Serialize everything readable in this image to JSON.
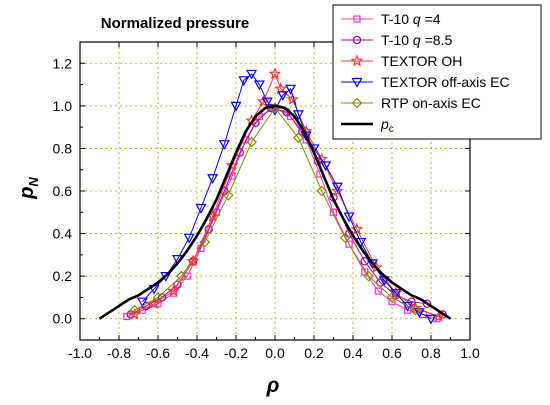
{
  "chart_data": {
    "type": "line",
    "title": "Normalized pressure",
    "xlabel": "ρ",
    "ylabel": "p",
    "ylabel_sub": "N",
    "xlim": [
      -1.0,
      1.0
    ],
    "ylim": [
      -0.1,
      1.3
    ],
    "xticks": [
      "-1.0",
      "-0.8",
      "-0.6",
      "-0.4",
      "-0.2",
      "0.0",
      "0.2",
      "0.4",
      "0.6",
      "0.8",
      "1.0"
    ],
    "yticks": [
      "0.0",
      "0.2",
      "0.4",
      "0.6",
      "0.8",
      "1.0",
      "1.2"
    ],
    "xtick_values": [
      -1.0,
      -0.8,
      -0.6,
      -0.4,
      -0.2,
      0.0,
      0.2,
      0.4,
      0.6,
      0.8,
      1.0
    ],
    "ytick_values": [
      0.0,
      0.2,
      0.4,
      0.6,
      0.8,
      1.0,
      1.2
    ],
    "grid": true,
    "legend_position": "top-right",
    "series": [
      {
        "name": "T-10 q=4",
        "legend_parts": [
          "T-10 ",
          "q",
          " =4"
        ],
        "color": "#ff33cc",
        "marker": "square",
        "x": [
          -0.76,
          -0.68,
          -0.6,
          -0.52,
          -0.45,
          -0.38,
          -0.3,
          -0.22,
          -0.15,
          -0.08,
          0.0,
          0.08,
          0.16,
          0.23,
          0.3,
          0.38,
          0.46,
          0.53,
          0.6,
          0.68,
          0.76,
          0.83
        ],
        "y": [
          0.01,
          0.04,
          0.07,
          0.12,
          0.2,
          0.33,
          0.5,
          0.67,
          0.84,
          0.95,
          0.99,
          0.95,
          0.84,
          0.68,
          0.5,
          0.35,
          0.22,
          0.13,
          0.08,
          0.04,
          0.02,
          0.0
        ]
      },
      {
        "name": "T-10 q=8.5",
        "legend_parts": [
          "T-10 ",
          "q",
          " =8.5"
        ],
        "color": "#aa00aa",
        "marker": "circle",
        "x": [
          -0.74,
          -0.66,
          -0.58,
          -0.5,
          -0.42,
          -0.34,
          -0.26,
          -0.18,
          -0.1,
          -0.02,
          0.06,
          0.14,
          0.22,
          0.3,
          0.38,
          0.46,
          0.54,
          0.62,
          0.7,
          0.78,
          0.86
        ],
        "y": [
          0.02,
          0.06,
          0.1,
          0.16,
          0.27,
          0.42,
          0.6,
          0.78,
          0.92,
          0.99,
          0.97,
          0.88,
          0.74,
          0.57,
          0.4,
          0.27,
          0.17,
          0.11,
          0.08,
          0.07,
          0.02
        ]
      },
      {
        "name": "TEXTOR OH",
        "legend_parts": [
          "TEXTOR OH"
        ],
        "color": "#ff3333",
        "marker": "star",
        "x": [
          -0.72,
          -0.62,
          -0.52,
          -0.42,
          -0.32,
          -0.22,
          -0.12,
          -0.06,
          0.0,
          0.03,
          0.09,
          0.16,
          0.24,
          0.32,
          0.42,
          0.52,
          0.62,
          0.72,
          0.84
        ],
        "y": [
          0.02,
          0.07,
          0.13,
          0.27,
          0.48,
          0.72,
          0.93,
          1.02,
          1.15,
          1.08,
          1.03,
          0.88,
          0.75,
          0.6,
          0.42,
          0.24,
          0.12,
          0.05,
          0.01
        ]
      },
      {
        "name": "TEXTOR off-axis EC",
        "legend_parts": [
          "TEXTOR off-axis EC"
        ],
        "color": "#0000ee",
        "marker": "triangle-down",
        "x": [
          -0.68,
          -0.62,
          -0.56,
          -0.5,
          -0.44,
          -0.38,
          -0.32,
          -0.26,
          -0.2,
          -0.16,
          -0.12,
          -0.08,
          -0.04,
          0.0,
          0.04,
          0.08,
          0.12,
          0.16,
          0.2,
          0.26,
          0.32,
          0.38,
          0.44,
          0.5,
          0.56,
          0.62,
          0.68,
          0.74,
          0.8
        ],
        "y": [
          0.08,
          0.14,
          0.2,
          0.28,
          0.38,
          0.52,
          0.66,
          0.82,
          1.0,
          1.12,
          1.15,
          1.1,
          1.02,
          0.98,
          1.05,
          1.08,
          0.96,
          0.86,
          0.8,
          0.72,
          0.62,
          0.48,
          0.36,
          0.26,
          0.18,
          0.12,
          0.06,
          0.03,
          0.0
        ]
      },
      {
        "name": "RTP on-axis EC",
        "legend_parts": [
          "RTP on-axis EC"
        ],
        "color": "#888800",
        "marker": "diamond",
        "x": [
          -0.72,
          -0.6,
          -0.48,
          -0.36,
          -0.24,
          -0.12,
          0.0,
          0.12,
          0.24,
          0.36,
          0.48,
          0.6,
          0.72
        ],
        "y": [
          0.04,
          0.1,
          0.2,
          0.36,
          0.58,
          0.83,
          0.99,
          0.85,
          0.6,
          0.38,
          0.2,
          0.1,
          0.04
        ]
      },
      {
        "name": "pc",
        "legend_parts": [
          "p",
          "c"
        ],
        "color": "#000000",
        "marker": "none",
        "x": [
          -0.9,
          -0.85,
          -0.8,
          -0.75,
          -0.7,
          -0.65,
          -0.6,
          -0.55,
          -0.5,
          -0.45,
          -0.4,
          -0.35,
          -0.3,
          -0.25,
          -0.2,
          -0.15,
          -0.1,
          -0.05,
          0.0,
          0.05,
          0.1,
          0.15,
          0.2,
          0.25,
          0.3,
          0.35,
          0.4,
          0.45,
          0.5,
          0.55,
          0.6,
          0.65,
          0.7,
          0.75,
          0.8,
          0.85,
          0.9
        ],
        "y": [
          0.0,
          0.03,
          0.06,
          0.09,
          0.11,
          0.14,
          0.17,
          0.21,
          0.26,
          0.32,
          0.39,
          0.47,
          0.56,
          0.67,
          0.78,
          0.88,
          0.95,
          0.99,
          1.0,
          0.99,
          0.95,
          0.88,
          0.78,
          0.67,
          0.56,
          0.47,
          0.39,
          0.32,
          0.26,
          0.21,
          0.17,
          0.14,
          0.11,
          0.09,
          0.06,
          0.03,
          0.0
        ]
      }
    ]
  }
}
